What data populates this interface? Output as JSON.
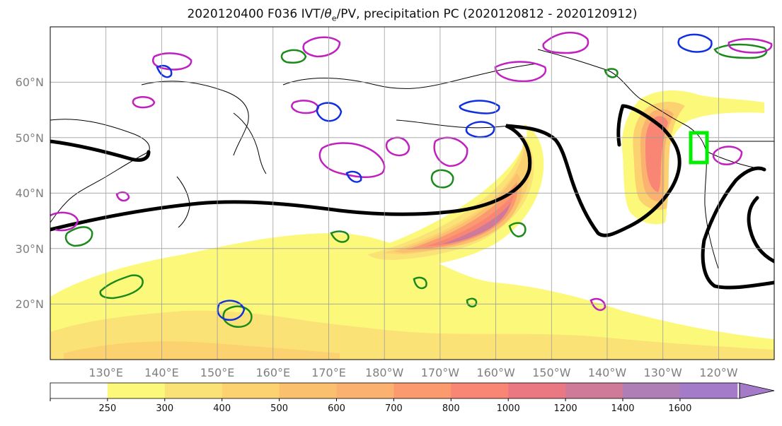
{
  "title": {
    "prefix": "2020120400 F036 IVT/",
    "theta": "θ",
    "theta_sub": "e",
    "suffix": "/PV, precipitation PC (2020120812 - 2020120912)"
  },
  "map": {
    "projection": "PlateCarree",
    "lon_range_deg_east": [
      120,
      250
    ],
    "lat_range": [
      10,
      70
    ],
    "lat_ticks": [
      "20°N",
      "30°N",
      "40°N",
      "50°N",
      "60°N"
    ],
    "lon_ticks": [
      "130°E",
      "140°E",
      "150°E",
      "160°E",
      "170°E",
      "180°W",
      "170°W",
      "160°W",
      "150°W",
      "140°W",
      "130°W",
      "120°W"
    ],
    "gridlines": true,
    "box_color": "#00ee00",
    "contour_colors": {
      "theta_e": "#000000",
      "pv_green": "#1a8a1a",
      "pv_magenta": "#c020c0",
      "pv_blue": "#1030e0"
    }
  },
  "colorbar": {
    "levels": [
      "250",
      "300",
      "400",
      "500",
      "600",
      "700",
      "800",
      "1000",
      "1200",
      "1400",
      "1600"
    ],
    "colors": [
      "#ffffff",
      "#fcf97a",
      "#fbe276",
      "#fcd271",
      "#fbc06e",
      "#fbb170",
      "#fb9a6f",
      "#f98575",
      "#e97882",
      "#d07a99",
      "#b07eb7",
      "#a47bc8"
    ],
    "extend": "max"
  }
}
